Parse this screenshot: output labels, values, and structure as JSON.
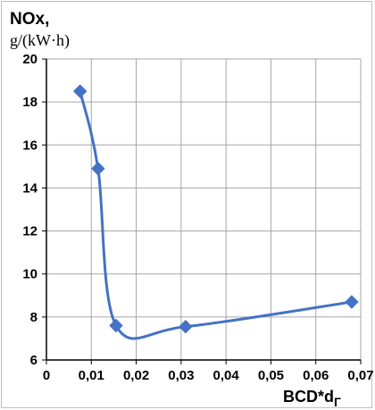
{
  "chart_data": {
    "type": "line",
    "ylabel": "NOx,",
    "ylabel_unit": "g/(kW·h)",
    "xlabel": "BCD*d",
    "xlabel_subscript": "Г",
    "xlim": [
      0,
      0.07
    ],
    "ylim": [
      6,
      20
    ],
    "x_ticks": [
      "0",
      "0,01",
      "0,02",
      "0,03",
      "0,04",
      "0,05",
      "0,06",
      "0,07"
    ],
    "y_ticks": [
      "6",
      "8",
      "10",
      "12",
      "14",
      "16",
      "18",
      "20"
    ],
    "grid": true,
    "smooth": true,
    "series": [
      {
        "color": "#4472c4",
        "marker": "diamond",
        "x": [
          0.0075,
          0.0115,
          0.0155,
          0.031,
          0.068
        ],
        "y": [
          18.5,
          14.9,
          7.6,
          7.55,
          8.7
        ]
      }
    ],
    "colors": {
      "line": "#4472c4",
      "grid": "#a6a6a6",
      "axis": "#000000"
    }
  }
}
